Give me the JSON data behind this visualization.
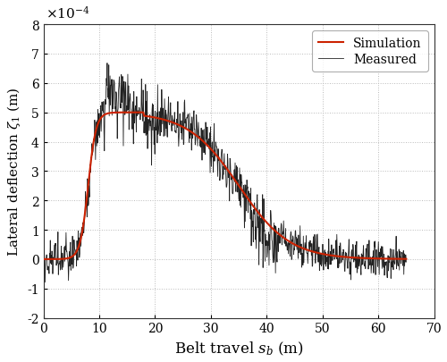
{
  "title": "",
  "xlabel": "Belt travel $s_b$ (m)",
  "ylabel": "Lateral deflection $\\zeta_1$ (m)",
  "xlim": [
    0,
    70
  ],
  "ylim": [
    -0.0002,
    0.0008
  ],
  "yticks": [
    -0.0002,
    -0.0001,
    0,
    0.0001,
    0.0002,
    0.0003,
    0.0004,
    0.0005,
    0.0006,
    0.0007,
    0.0008
  ],
  "xticks": [
    0,
    10,
    20,
    30,
    40,
    50,
    60,
    70
  ],
  "sim_color": "#cc2200",
  "meas_color": "#222222",
  "sim_linewidth": 1.5,
  "meas_linewidth": 0.6,
  "grid_color": "#bbbbbb",
  "grid_linestyle": ":",
  "legend_labels": [
    "Simulation",
    "Measured"
  ],
  "background_color": "#ffffff",
  "figsize": [
    5.0,
    4.06
  ],
  "dpi": 100,
  "scale_label": "$\\times 10^{-4}$"
}
